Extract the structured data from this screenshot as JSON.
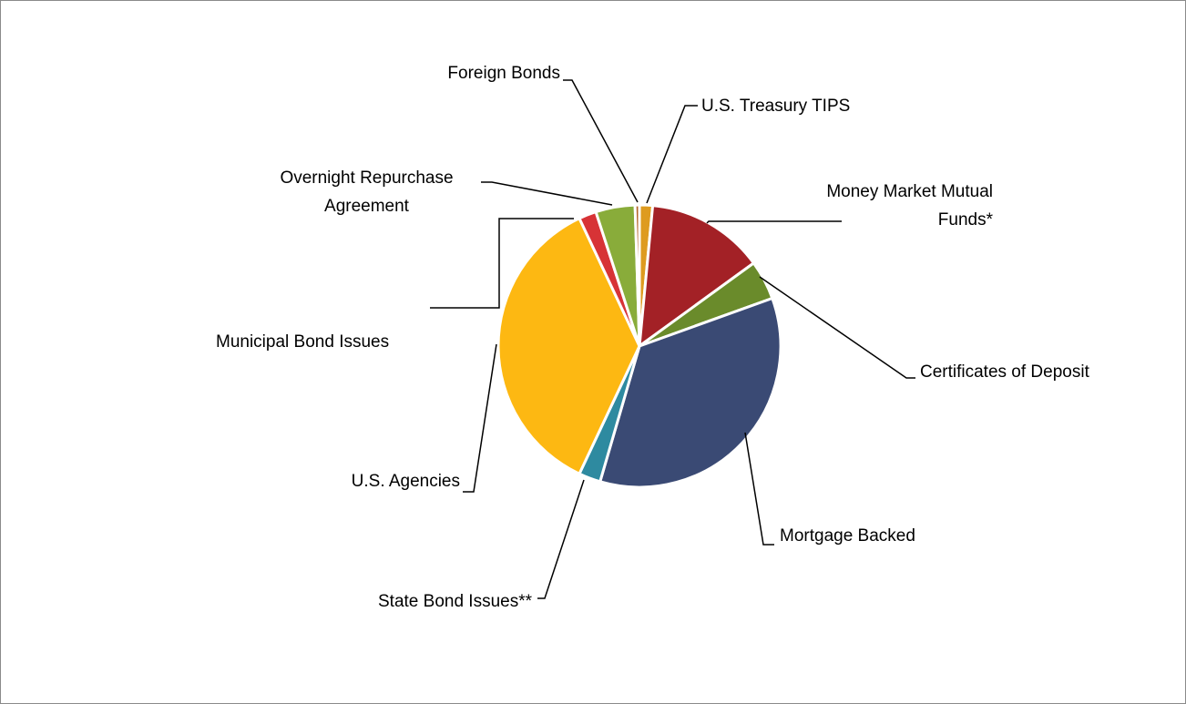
{
  "chart_data": {
    "type": "pie",
    "categories": [
      "U.S. Treasury TIPS",
      "Money Market Mutual Funds*",
      "Certificates of Deposit",
      "Mortgage Backed",
      "State Bond Issues**",
      "U.S. Agencies",
      "Municipal Bond Issues",
      "Overnight Repurchase Agreement",
      "Foreign Bonds"
    ],
    "values": [
      1.5,
      13.5,
      4.5,
      35,
      2.5,
      36,
      2,
      4.5,
      0.5
    ],
    "colors": [
      "#DE9B1F",
      "#A32126",
      "#6A8B2B",
      "#3A4A74",
      "#2E8AA0",
      "#FDB812",
      "#D73336",
      "#89AC3A",
      "#B5662A"
    ]
  }
}
